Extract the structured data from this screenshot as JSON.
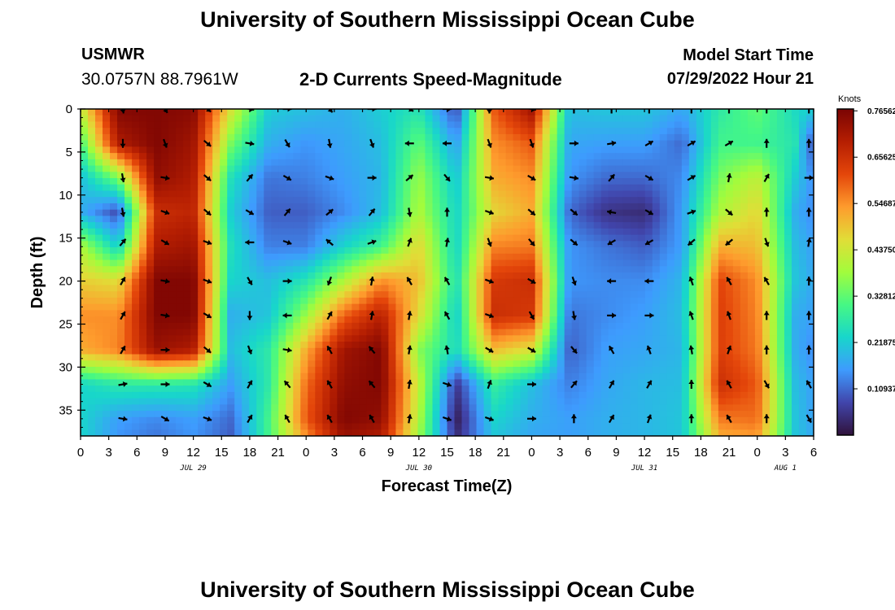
{
  "page": {
    "title": "University of Southern Mississippi Ocean Cube",
    "station_name": "USMWR",
    "station_coords": "30.0757N  88.7961W",
    "plot_title": "2-D Currents Speed-Magnitude",
    "model_start_label": "Model Start Time",
    "model_start_value": "07/29/2022 Hour 21",
    "bottom_title": "University of Southern Mississippi Ocean Cube"
  },
  "chart_data": {
    "type": "heatmap",
    "title": "2-D Currents Speed-Magnitude",
    "xlabel": "Forecast Time(Z)",
    "ylabel": "Depth (ft)",
    "xlim_hours": [
      0,
      78
    ],
    "ylim": [
      0,
      38
    ],
    "y_ticks": [
      0,
      5,
      10,
      15,
      20,
      25,
      30,
      35
    ],
    "x_ticks": [
      {
        "h": 0,
        "label": "0"
      },
      {
        "h": 3,
        "label": "3"
      },
      {
        "h": 6,
        "label": "6"
      },
      {
        "h": 9,
        "label": "9"
      },
      {
        "h": 12,
        "label": "12"
      },
      {
        "h": 15,
        "label": "15"
      },
      {
        "h": 18,
        "label": "18"
      },
      {
        "h": 21,
        "label": "21"
      },
      {
        "h": 24,
        "label": "0"
      },
      {
        "h": 27,
        "label": "3"
      },
      {
        "h": 30,
        "label": "6"
      },
      {
        "h": 33,
        "label": "9"
      },
      {
        "h": 36,
        "label": "12"
      },
      {
        "h": 39,
        "label": "15"
      },
      {
        "h": 42,
        "label": "18"
      },
      {
        "h": 45,
        "label": "21"
      },
      {
        "h": 48,
        "label": "0"
      },
      {
        "h": 51,
        "label": "3"
      },
      {
        "h": 54,
        "label": "6"
      },
      {
        "h": 57,
        "label": "9"
      },
      {
        "h": 60,
        "label": "12"
      },
      {
        "h": 63,
        "label": "15"
      },
      {
        "h": 66,
        "label": "18"
      },
      {
        "h": 69,
        "label": "21"
      },
      {
        "h": 72,
        "label": "0"
      },
      {
        "h": 75,
        "label": "3"
      },
      {
        "h": 78,
        "label": "6"
      }
    ],
    "date_labels": [
      {
        "h": 12,
        "label": "JUL 29"
      },
      {
        "h": 36,
        "label": "JUL 30"
      },
      {
        "h": 60,
        "label": "JUL 31"
      },
      {
        "h": 75,
        "label": "AUG 1"
      }
    ],
    "colorbar": {
      "unit": "Knots",
      "min": 0.0,
      "max": 0.77,
      "tick_values": [
        0.76562,
        0.65625,
        0.54687,
        0.4375,
        0.32812,
        0.21875,
        0.10937
      ],
      "tick_labels": [
        "0.76562",
        "0.65625",
        "0.54687",
        "0.43750",
        "0.32812",
        "0.21875",
        "0.10937"
      ]
    },
    "speed_field_knots": {
      "depths_ft": [
        0,
        4,
        8,
        12,
        16,
        20,
        24,
        28,
        32,
        36,
        38
      ],
      "hours": [
        0,
        4,
        8,
        12,
        16,
        20,
        24,
        28,
        32,
        36,
        40,
        44,
        48,
        52,
        56,
        60,
        64,
        68,
        72,
        76,
        78
      ],
      "values": [
        [
          0.42,
          0.76,
          0.76,
          0.75,
          0.45,
          0.22,
          0.2,
          0.18,
          0.22,
          0.26,
          0.08,
          0.6,
          0.72,
          0.2,
          0.21,
          0.21,
          0.17,
          0.27,
          0.33,
          0.24,
          0.22
        ],
        [
          0.3,
          0.7,
          0.76,
          0.72,
          0.35,
          0.18,
          0.15,
          0.17,
          0.2,
          0.33,
          0.16,
          0.55,
          0.6,
          0.17,
          0.16,
          0.16,
          0.11,
          0.3,
          0.3,
          0.26,
          0.08
        ],
        [
          0.2,
          0.35,
          0.74,
          0.7,
          0.25,
          0.12,
          0.13,
          0.16,
          0.19,
          0.38,
          0.21,
          0.52,
          0.55,
          0.15,
          0.11,
          0.11,
          0.14,
          0.35,
          0.42,
          0.22,
          0.14
        ],
        [
          0.18,
          0.08,
          0.66,
          0.68,
          0.22,
          0.1,
          0.1,
          0.14,
          0.2,
          0.4,
          0.23,
          0.47,
          0.52,
          0.11,
          0.05,
          0.04,
          0.16,
          0.4,
          0.47,
          0.18,
          0.14
        ],
        [
          0.4,
          0.22,
          0.7,
          0.72,
          0.25,
          0.13,
          0.13,
          0.23,
          0.3,
          0.47,
          0.23,
          0.56,
          0.57,
          0.15,
          0.12,
          0.1,
          0.16,
          0.52,
          0.5,
          0.2,
          0.16
        ],
        [
          0.48,
          0.46,
          0.76,
          0.76,
          0.23,
          0.2,
          0.26,
          0.4,
          0.55,
          0.5,
          0.25,
          0.64,
          0.66,
          0.15,
          0.14,
          0.14,
          0.19,
          0.62,
          0.55,
          0.21,
          0.17
        ],
        [
          0.55,
          0.55,
          0.76,
          0.76,
          0.18,
          0.21,
          0.38,
          0.59,
          0.69,
          0.46,
          0.22,
          0.66,
          0.64,
          0.12,
          0.14,
          0.16,
          0.2,
          0.63,
          0.56,
          0.18,
          0.16
        ],
        [
          0.52,
          0.56,
          0.73,
          0.7,
          0.2,
          0.27,
          0.52,
          0.72,
          0.76,
          0.36,
          0.24,
          0.5,
          0.45,
          0.1,
          0.16,
          0.17,
          0.19,
          0.63,
          0.57,
          0.18,
          0.14
        ],
        [
          0.23,
          0.27,
          0.27,
          0.26,
          0.16,
          0.27,
          0.58,
          0.74,
          0.76,
          0.42,
          0.06,
          0.28,
          0.2,
          0.13,
          0.17,
          0.19,
          0.2,
          0.66,
          0.6,
          0.2,
          0.16
        ],
        [
          0.23,
          0.16,
          0.14,
          0.16,
          0.11,
          0.3,
          0.6,
          0.76,
          0.74,
          0.4,
          0.02,
          0.23,
          0.18,
          0.16,
          0.18,
          0.19,
          0.21,
          0.57,
          0.58,
          0.21,
          0.16
        ],
        [
          0.23,
          0.15,
          0.12,
          0.15,
          0.1,
          0.3,
          0.55,
          0.73,
          0.7,
          0.38,
          0.04,
          0.21,
          0.17,
          0.16,
          0.18,
          0.19,
          0.21,
          0.52,
          0.54,
          0.21,
          0.17
        ]
      ]
    },
    "vector_rows_depth_ft": [
      0,
      4,
      8,
      12,
      15.5,
      20,
      24,
      28,
      32,
      36
    ],
    "vector_columns_hours": [
      0,
      4.5,
      9,
      13.5,
      18,
      22,
      26.5,
      31,
      35,
      39,
      43.5,
      48,
      52.5,
      56.5,
      60.5,
      65,
      69,
      73,
      77.5
    ],
    "vector_directions_deg": [
      [
        0,
        170,
        150,
        130,
        100,
        90,
        140,
        90,
        120,
        90,
        180,
        100,
        0,
        0,
        0,
        0,
        0,
        0,
        0
      ],
      [
        0,
        180,
        160,
        130,
        100,
        150,
        170,
        160,
        270,
        270,
        160,
        160,
        90,
        80,
        60,
        60,
        60,
        0,
        0
      ],
      [
        0,
        170,
        100,
        130,
        40,
        120,
        110,
        90,
        50,
        140,
        100,
        120,
        100,
        40,
        120,
        60,
        10,
        30,
        90
      ],
      [
        0,
        170,
        110,
        130,
        120,
        40,
        50,
        40,
        170,
        0,
        110,
        130,
        130,
        280,
        120,
        70,
        130,
        0,
        0
      ],
      [
        0,
        40,
        120,
        110,
        270,
        110,
        310,
        70,
        20,
        10,
        160,
        140,
        130,
        240,
        240,
        230,
        230,
        160,
        10
      ],
      [
        0,
        30,
        100,
        110,
        150,
        90,
        200,
        10,
        330,
        330,
        110,
        120,
        160,
        270,
        270,
        340,
        330,
        330,
        0
      ],
      [
        0,
        30,
        100,
        120,
        180,
        270,
        30,
        10,
        10,
        330,
        110,
        150,
        170,
        90,
        90,
        340,
        340,
        0,
        0
      ],
      [
        0,
        30,
        90,
        130,
        160,
        100,
        330,
        320,
        10,
        350,
        120,
        120,
        140,
        330,
        340,
        350,
        20,
        0,
        0
      ],
      [
        0,
        80,
        90,
        120,
        30,
        320,
        330,
        320,
        10,
        110,
        20,
        90,
        40,
        30,
        30,
        0,
        330,
        150,
        330
      ],
      [
        0,
        100,
        120,
        110,
        30,
        330,
        330,
        330,
        10,
        110,
        110,
        90,
        0,
        30,
        20,
        0,
        330,
        0,
        150
      ]
    ]
  }
}
